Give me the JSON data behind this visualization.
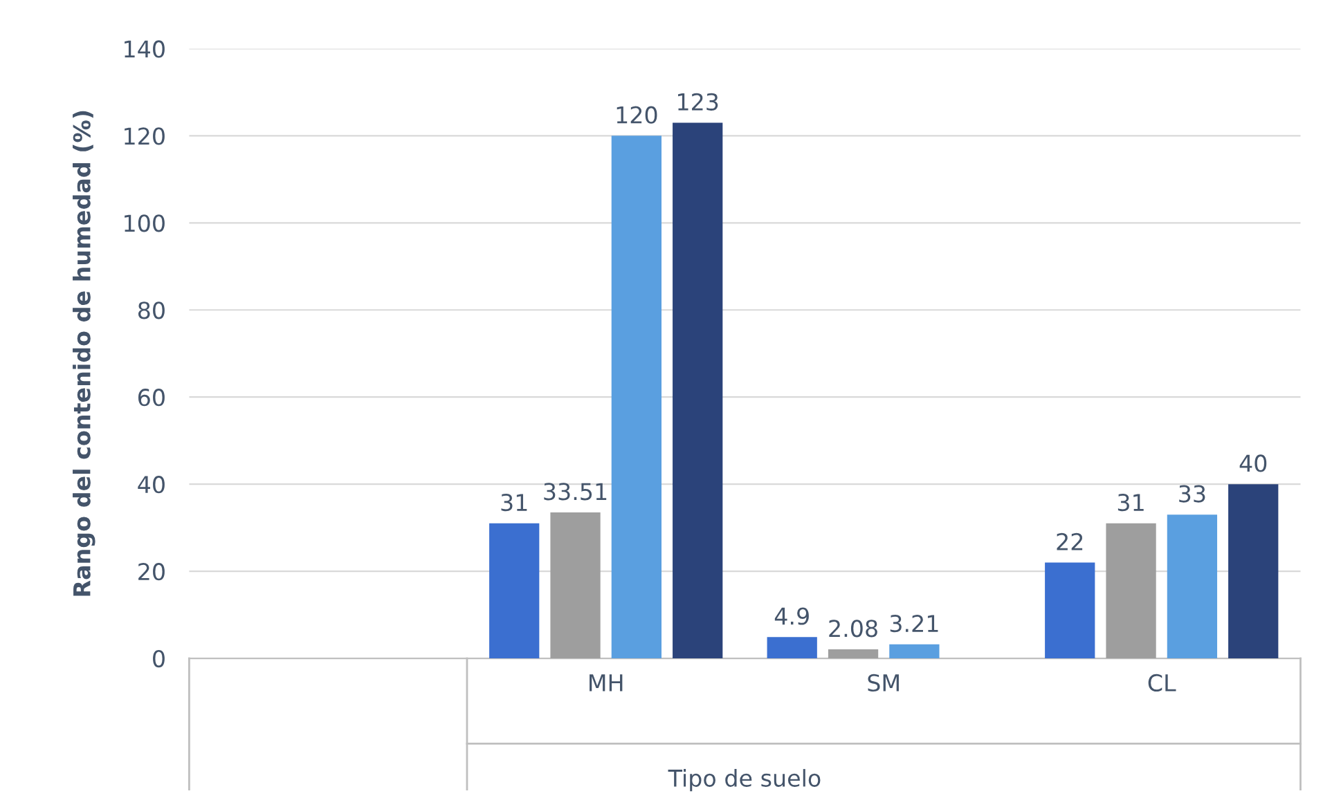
{
  "chart_data": {
    "type": "bar",
    "xlabel": "Tipo de suelo",
    "ylabel": "Rango del contenido de humedad (%)",
    "categories": [
      null,
      "MH",
      "SM",
      "CL"
    ],
    "series": [
      {
        "color": "#3b6fd0",
        "values": [
          null,
          31,
          4.9,
          22
        ]
      },
      {
        "color": "#9e9e9e",
        "values": [
          null,
          33.51,
          2.08,
          31
        ]
      },
      {
        "color": "#5a9fe0",
        "values": [
          null,
          120,
          3.21,
          33
        ]
      },
      {
        "color": "#2b437a",
        "values": [
          null,
          123,
          null,
          40
        ]
      }
    ],
    "ylim": [
      0,
      140
    ],
    "yticks": [
      0,
      20,
      40,
      60,
      80,
      100,
      120,
      140
    ],
    "grid": "y",
    "data_labels": true,
    "legend": false
  }
}
